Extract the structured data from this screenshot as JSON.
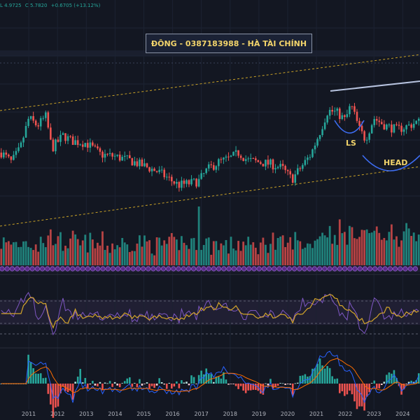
{
  "header": {
    "ohlc": [
      "L 4.9725",
      "C 5.7820",
      "+0.6705 (+13.12%)"
    ]
  },
  "banner": {
    "text": "ĐÔNG - 0387183988 - HÀ TÀI CHÍNH"
  },
  "annotations": {
    "ls": "LS",
    "head": "HEAD"
  },
  "colors": {
    "up": "#26a69a",
    "down": "#ef5350",
    "annotation": "#f2d46b",
    "background": "#131722"
  },
  "chart_data": {
    "type": "candlestick",
    "x_ticks": [
      "2011",
      "2012",
      "2013",
      "2014",
      "2015",
      "2016",
      "2017",
      "2018",
      "2019",
      "2020",
      "2021",
      "2022",
      "2023",
      "2024"
    ],
    "price_anchors": [
      {
        "year": 2010.05,
        "value": 0.6
      },
      {
        "year": 2010.4,
        "value": 0.55
      },
      {
        "year": 2010.7,
        "value": 0.62
      },
      {
        "year": 2011.0,
        "value": 0.78
      },
      {
        "year": 2011.3,
        "value": 0.74
      },
      {
        "year": 2011.6,
        "value": 0.79
      },
      {
        "year": 2011.8,
        "value": 0.62
      },
      {
        "year": 2012.2,
        "value": 0.69
      },
      {
        "year": 2012.5,
        "value": 0.66
      },
      {
        "year": 2013.0,
        "value": 0.65
      },
      {
        "year": 2013.5,
        "value": 0.59
      },
      {
        "year": 2014.0,
        "value": 0.58
      },
      {
        "year": 2014.5,
        "value": 0.56
      },
      {
        "year": 2015.0,
        "value": 0.53
      },
      {
        "year": 2015.5,
        "value": 0.5
      },
      {
        "year": 2015.9,
        "value": 0.46
      },
      {
        "year": 2016.2,
        "value": 0.43
      },
      {
        "year": 2016.6,
        "value": 0.44
      },
      {
        "year": 2016.9,
        "value": 0.45
      },
      {
        "year": 2017.2,
        "value": 0.51
      },
      {
        "year": 2017.6,
        "value": 0.55
      },
      {
        "year": 2018.0,
        "value": 0.57
      },
      {
        "year": 2018.3,
        "value": 0.6
      },
      {
        "year": 2018.6,
        "value": 0.56
      },
      {
        "year": 2019.0,
        "value": 0.55
      },
      {
        "year": 2019.4,
        "value": 0.54
      },
      {
        "year": 2019.8,
        "value": 0.52
      },
      {
        "year": 2020.15,
        "value": 0.46
      },
      {
        "year": 2020.5,
        "value": 0.53
      },
      {
        "year": 2020.8,
        "value": 0.59
      },
      {
        "year": 2021.1,
        "value": 0.7
      },
      {
        "year": 2021.4,
        "value": 0.82
      },
      {
        "year": 2021.7,
        "value": 0.81
      },
      {
        "year": 2022.0,
        "value": 0.77
      },
      {
        "year": 2022.2,
        "value": 0.85
      },
      {
        "year": 2022.5,
        "value": 0.72
      },
      {
        "year": 2022.7,
        "value": 0.67
      },
      {
        "year": 2023.0,
        "value": 0.78
      },
      {
        "year": 2023.4,
        "value": 0.74
      },
      {
        "year": 2023.8,
        "value": 0.72
      },
      {
        "year": 2024.2,
        "value": 0.74
      },
      {
        "year": 2024.5,
        "value": 0.76
      }
    ],
    "year_range": [
      2010.0,
      2024.6
    ],
    "price_range": [
      0.3,
      1.05
    ],
    "panels": [
      "price",
      "volume",
      "rsi",
      "macd"
    ],
    "grid": true
  }
}
